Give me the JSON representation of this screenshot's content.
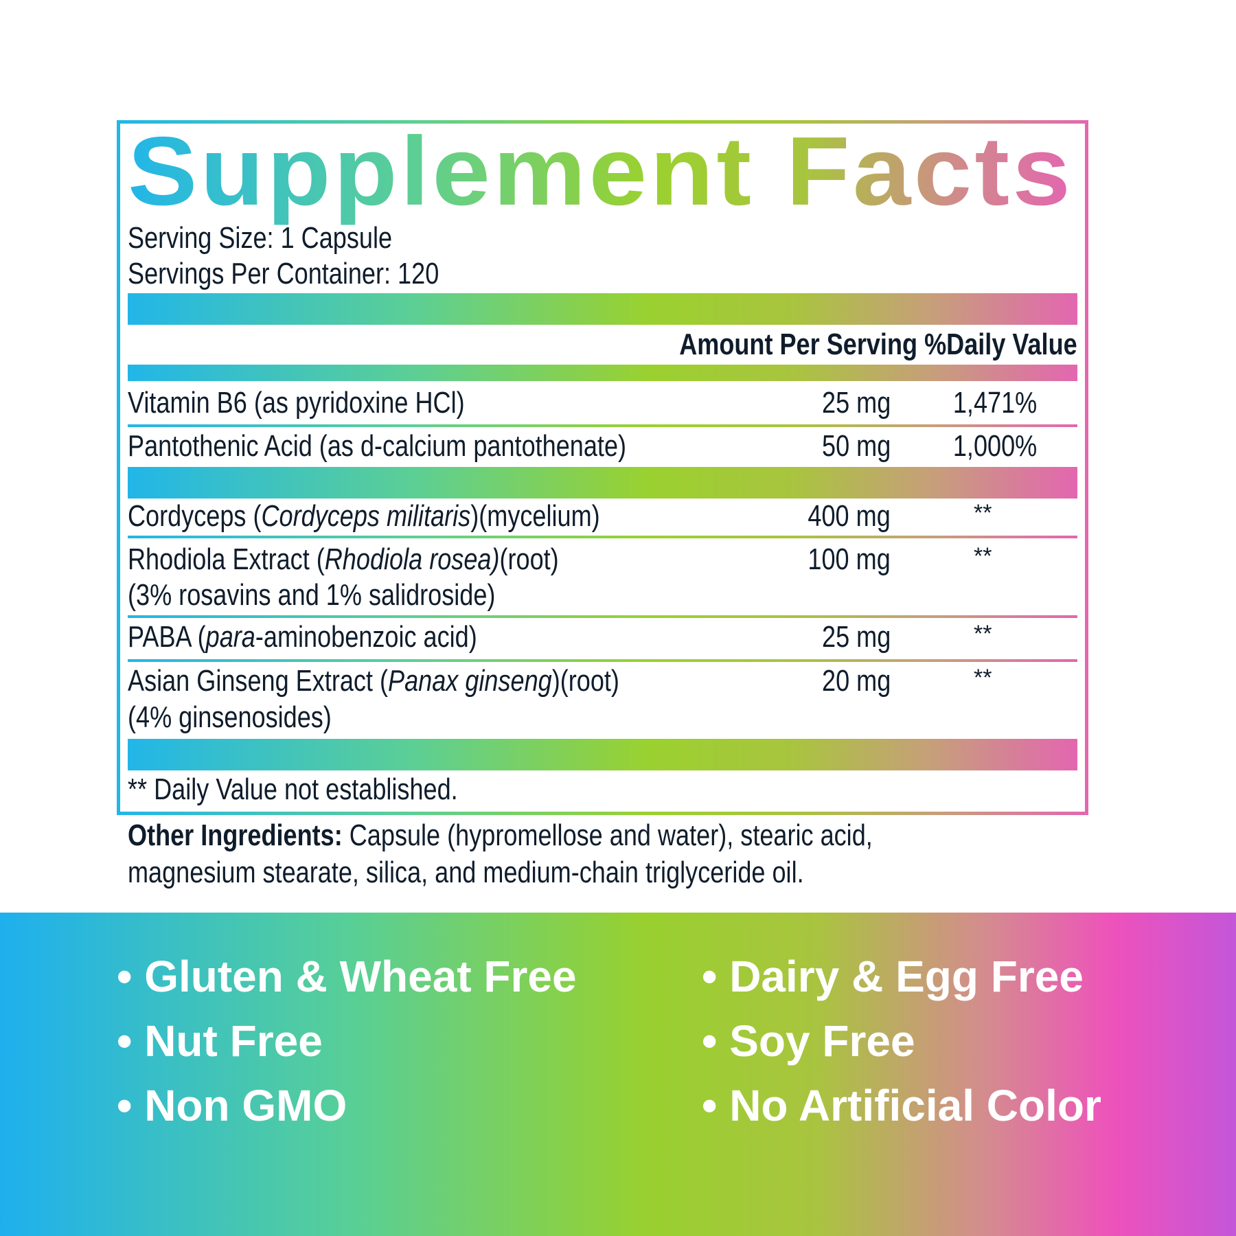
{
  "title": "Supplement Facts",
  "serving_size": "Serving Size: 1 Capsule",
  "servings_per_container": "Servings Per Container: 120",
  "header": {
    "amount": "Amount Per Serving",
    "dv": "%Daily Value"
  },
  "rows": [
    {
      "name": "Vitamin B6 (as pyridoxine HCl)",
      "amount": "25 mg",
      "dv": "1,471%"
    },
    {
      "name": "Pantothenic Acid (as d-calcium pantothenate)",
      "amount": "50 mg",
      "dv": "1,000%"
    },
    {
      "name_a": "Cordyceps (",
      "name_i": "Cordyceps militaris",
      "name_b": ")(mycelium)",
      "amount": "400 mg",
      "dv": "**"
    },
    {
      "name_a": "Rhodiola Extract (",
      "name_i": "Rhodiola rosea)",
      "name_b": "(root)",
      "line2": "(3% rosavins and 1% salidroside)",
      "amount": "100 mg",
      "dv": "**"
    },
    {
      "name_a": "PABA (",
      "name_i": "para",
      "name_b": "-aminobenzoic acid)",
      "amount": "25 mg",
      "dv": "**"
    },
    {
      "name_a": "Asian Ginseng Extract (",
      "name_i": "Panax ginseng",
      "name_b": ")(root)",
      "line2": "(4% ginsenosides)",
      "amount": "20 mg",
      "dv": "**"
    }
  ],
  "footnote": "** Daily Value not established.",
  "other_ingredients": {
    "label": "Other Ingredients:",
    "line1": " Capsule (hypromellose and water), stearic acid,",
    "line2": "magnesium stearate, silica, and medium-chain triglyceride oil."
  },
  "claims": [
    "• Gluten & Wheat Free",
    "• Nut Free",
    "• Non GMO",
    "• Dairy & Egg Free",
    "• Soy Free",
    "• No Artificial Color"
  ],
  "colors": {
    "text": "#0f1c2b",
    "gradient_start": "#22b6e8",
    "gradient_mid": "#9ad12f",
    "gradient_end": "#e366b0"
  }
}
